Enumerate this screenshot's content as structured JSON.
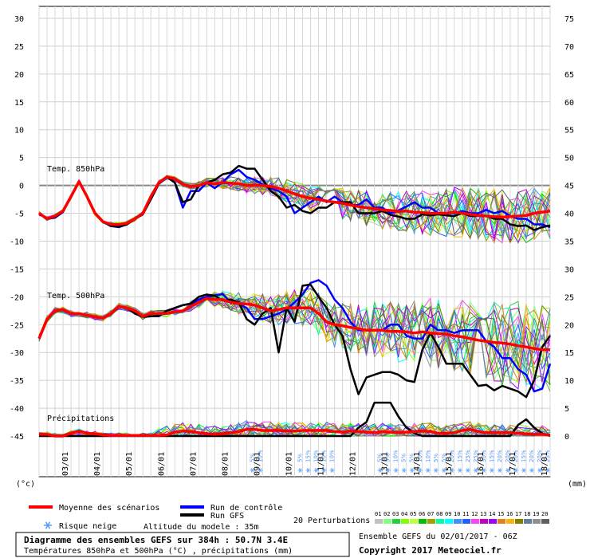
{
  "chart_data": {
    "type": "line",
    "title": "Diagramme des ensembles GEFS sur 384h : 50.7N 3.4E",
    "subtitle": "Températures 850hPa et 500hPa (°C) , précipitations (mm)",
    "left_axis": {
      "unit": "(°c)",
      "ticks": [
        30,
        25,
        20,
        15,
        10,
        5,
        0,
        -5,
        -10,
        -15,
        -20,
        -25,
        -30,
        -35,
        -40,
        -45
      ],
      "range": [
        -45,
        30
      ]
    },
    "right_axis": {
      "unit": "(mm)",
      "ticks": [
        75,
        70,
        65,
        60,
        55,
        50,
        45,
        40,
        35,
        30,
        25,
        20,
        15,
        10,
        5,
        0
      ],
      "range": [
        0,
        75
      ]
    },
    "x_dates": [
      "03/01",
      "04/01",
      "05/01",
      "06/01",
      "07/01",
      "08/01",
      "09/01",
      "10/01",
      "11/01",
      "12/01",
      "13/01",
      "14/01",
      "15/01",
      "16/01",
      "17/01",
      "18/01"
    ],
    "x_steps": 64,
    "section_labels": {
      "t850": "Temp. 850hPa",
      "t500": "Temp. 500hPa",
      "precip": "Précipitations"
    },
    "series": [
      {
        "name": "Moyenne des scénarios",
        "color": "#ff0000",
        "t850": [
          -5,
          -6,
          -5.5,
          -4.6,
          -2,
          0.7,
          -2,
          -5,
          -6.5,
          -7,
          -7,
          -6.8,
          -6,
          -5,
          -2,
          0.5,
          1.5,
          1.2,
          0.2,
          -0.2,
          0,
          0.5,
          0.3,
          0.5,
          0.4,
          0.3,
          0,
          0,
          0,
          -0.2,
          -0.5,
          -1,
          -1.5,
          -2,
          -2.3,
          -2.5,
          -2.8,
          -3,
          -3.2,
          -3.5,
          -3.8,
          -4,
          -4.2,
          -4.4,
          -4.5,
          -4.7,
          -4.6,
          -4.8,
          -4.9,
          -5,
          -5,
          -5,
          -4.8,
          -5,
          -5.2,
          -5.4,
          -5.5,
          -5.6,
          -5.7,
          -5.6,
          -5.5,
          -5.4,
          -5,
          -4.8,
          -4.6
        ],
        "t500": [
          -27.5,
          -24,
          -22.5,
          -22.3,
          -23,
          -23,
          -23.3,
          -23.6,
          -23.8,
          -23,
          -21.7,
          -22,
          -22.5,
          -23.5,
          -23,
          -23,
          -23,
          -22.7,
          -22.5,
          -21.7,
          -21,
          -20.3,
          -20.5,
          -20.5,
          -21,
          -21.2,
          -21.3,
          -21.5,
          -22,
          -22.5,
          -22.3,
          -22,
          -22,
          -22,
          -22,
          -23,
          -24.5,
          -25,
          -25.2,
          -25.5,
          -25.7,
          -26,
          -26,
          -26,
          -26.2,
          -26.2,
          -26.3,
          -26.5,
          -26.3,
          -26.5,
          -26.6,
          -26.7,
          -27,
          -27.2,
          -27.5,
          -27.8,
          -28,
          -28.2,
          -28.3,
          -28.5,
          -28.8,
          -29,
          -29.3,
          -29.5,
          -29.5
        ],
        "precip": [
          0.3,
          0.3,
          0,
          0,
          0.5,
          0.9,
          0.5,
          0.4,
          0.2,
          0.1,
          0.1,
          0.1,
          0.1,
          0.1,
          0.1,
          0.1,
          0.2,
          0.7,
          0.9,
          0.8,
          0.6,
          0.4,
          0.3,
          0.4,
          0.6,
          0.8,
          1.2,
          1.2,
          1.0,
          1.0,
          1.0,
          0.9,
          0.9,
          1.0,
          1.0,
          1.0,
          1.0,
          0.8,
          0.7,
          0.9,
          0.8,
          0.7,
          0.6,
          0.8,
          0.7,
          0.6,
          0.7,
          0.8,
          0.9,
          0.8,
          0.5,
          0.5,
          0.6,
          1.0,
          1.2,
          0.8,
          0.6,
          0.6,
          0.6,
          0.6,
          0.5,
          0.4,
          0.3,
          0.3,
          0.2
        ]
      },
      {
        "name": "Run de contrôle",
        "color": "#0000ff",
        "t850": [
          -5,
          -6,
          -5.8,
          -4.8,
          -2,
          0.6,
          -2,
          -5,
          -6.5,
          -7.3,
          -7.5,
          -7,
          -6,
          -5,
          -2.5,
          0.3,
          1.6,
          0.5,
          -4,
          -1,
          -1,
          0.5,
          -0.5,
          0.6,
          2,
          2.8,
          1.5,
          1,
          0.2,
          -0.5,
          -1,
          -2,
          -5,
          -4,
          -3,
          -2,
          -3,
          -2,
          -3,
          -3.5,
          -3.5,
          -2.5,
          -4,
          -4,
          -5,
          -4.5,
          -3.8,
          -3,
          -4,
          -4,
          -5,
          -5,
          -5,
          -4.6,
          -5,
          -5,
          -4.4,
          -5,
          -4.6,
          -5.5,
          -6,
          -6,
          -7,
          -7,
          -7.5
        ],
        "t500": [
          -27.5,
          -24,
          -22.5,
          -22.4,
          -23,
          -23,
          -23.3,
          -23.6,
          -23.8,
          -23,
          -21.7,
          -22,
          -23,
          -23.6,
          -23.5,
          -23.5,
          -22.5,
          -22,
          -21.5,
          -21.3,
          -20.5,
          -20,
          -19.8,
          -19.5,
          -21,
          -21.3,
          -22,
          -24,
          -24,
          -23.5,
          -23,
          -22.3,
          -21,
          -19.6,
          -17.5,
          -17,
          -18,
          -20.5,
          -22,
          -24.5,
          -26,
          -26,
          -26,
          -26,
          -25,
          -25,
          -27,
          -27.5,
          -27.5,
          -25,
          -26,
          -26,
          -26.5,
          -26,
          -26,
          -26,
          -28,
          -29,
          -31,
          -31,
          -33,
          -34,
          -37,
          -36.5,
          -32
        ]
      },
      {
        "name": "Run GFS",
        "color": "#000000",
        "t850": [
          -5,
          -6,
          -5.7,
          -4.7,
          -2,
          0.6,
          -2,
          -5,
          -6.5,
          -7.3,
          -7.4,
          -7,
          -6,
          -5.2,
          -2.5,
          0.3,
          1.5,
          0.5,
          -3,
          -2.5,
          0,
          0.5,
          1,
          2,
          2.3,
          3.5,
          3,
          3,
          1,
          -1,
          -2,
          -4,
          -3.5,
          -4.6,
          -5,
          -4,
          -4,
          -3,
          -3,
          -3,
          -5,
          -5,
          -5,
          -4.6,
          -5.3,
          -5.6,
          -6,
          -6,
          -5.2,
          -5.4,
          -5.2,
          -5.4,
          -5.5,
          -5,
          -5.5,
          -5.5,
          -5.5,
          -6,
          -6,
          -7,
          -7.3,
          -7.2,
          -8,
          -7.5,
          -7.2
        ],
        "t500": [
          -27.5,
          -24,
          -22.5,
          -22.4,
          -23,
          -23,
          -23.3,
          -23.6,
          -23.8,
          -23,
          -21.7,
          -22,
          -23,
          -23.6,
          -23.5,
          -23.4,
          -22.5,
          -22,
          -21.5,
          -21.2,
          -20,
          -19.6,
          -19.8,
          -20.7,
          -20.5,
          -21,
          -24,
          -25,
          -23,
          -22,
          -30,
          -22,
          -24.5,
          -18,
          -17.8,
          -20,
          -22,
          -25,
          -27,
          -33,
          -37.5,
          -34.5,
          -34,
          -33.5,
          -33.5,
          -34,
          -35,
          -35.3,
          -29.5,
          -26.5,
          -29,
          -32,
          -32,
          -32,
          -34,
          -36,
          -35.8,
          -36.8,
          -36,
          -36.5,
          -37,
          -38,
          -35,
          -29,
          -27
        ],
        "precip": [
          0,
          0,
          0,
          0,
          0,
          0,
          0,
          0,
          0,
          0,
          0,
          0,
          0,
          0,
          0,
          0,
          0,
          0,
          0,
          0,
          0,
          0,
          0,
          0,
          0,
          0,
          0,
          0,
          0,
          0,
          0,
          0,
          0,
          0,
          0,
          0,
          0,
          0,
          0,
          0,
          1.5,
          2.5,
          6,
          6,
          6,
          3.5,
          1.5,
          0.5,
          0,
          0,
          0,
          0,
          0,
          0,
          0,
          0,
          0,
          0,
          0,
          0,
          2,
          3,
          1.5,
          0.5,
          0
        ]
      }
    ],
    "perturbation_colors": [
      "#c0c0c0",
      "#80ff80",
      "#20d040",
      "#80ff00",
      "#c0ff40",
      "#00c000",
      "#a0a000",
      "#00ffa0",
      "#00ffff",
      "#4090ff",
      "#2060ff",
      "#ff40ff",
      "#c000c0",
      "#a000ff",
      "#e08020",
      "#ffb000",
      "#808000",
      "#6080a0",
      "#909090",
      "#606060"
    ],
    "snow_risk": [
      {
        "step": 27,
        "pct": "5%"
      },
      {
        "step": 28,
        "pct": "10%"
      },
      {
        "step": 33,
        "pct": "5%"
      },
      {
        "step": 34,
        "pct": "15%"
      },
      {
        "step": 35,
        "pct": "10%"
      },
      {
        "step": 36,
        "pct": "10%"
      },
      {
        "step": 37,
        "pct": "10%"
      },
      {
        "step": 43,
        "pct": "5%"
      },
      {
        "step": 44,
        "pct": "5%"
      },
      {
        "step": 45,
        "pct": "10%"
      },
      {
        "step": 46,
        "pct": "5%"
      },
      {
        "step": 47,
        "pct": "5%"
      },
      {
        "step": 48,
        "pct": "10%"
      },
      {
        "step": 49,
        "pct": "10%"
      },
      {
        "step": 50,
        "pct": "5%"
      },
      {
        "step": 51,
        "pct": "5%"
      },
      {
        "step": 52,
        "pct": "20%"
      },
      {
        "step": 53,
        "pct": "15%"
      },
      {
        "step": 54,
        "pct": "25%"
      },
      {
        "step": 55,
        "pct": "25%"
      },
      {
        "step": 56,
        "pct": "30%"
      },
      {
        "step": 57,
        "pct": "15%"
      },
      {
        "step": 58,
        "pct": "20%"
      },
      {
        "step": 59,
        "pct": "20%"
      },
      {
        "step": 60,
        "pct": "20%"
      },
      {
        "step": 61,
        "pct": "15%"
      },
      {
        "step": 62,
        "pct": "20%"
      },
      {
        "step": 63,
        "pct": "20%"
      },
      {
        "step": 64,
        "pct": "25%"
      }
    ]
  },
  "legend": {
    "mean": "Moyenne des scénarios",
    "control": "Run de contrôle",
    "gfs": "Run GFS",
    "perturbations": "20 Perturbations",
    "snow": "Risque neige",
    "altitude": "Altitude du modele : 35m",
    "perturbation_numbers": [
      "01",
      "02",
      "03",
      "04",
      "05",
      "06",
      "07",
      "08",
      "09",
      "10",
      "11",
      "12",
      "13",
      "14",
      "15",
      "16",
      "17",
      "18",
      "19",
      "20"
    ]
  },
  "footer": {
    "title": "Diagramme des ensembles GEFS sur 384h : 50.7N 3.4E",
    "subtitle": "Températures 850hPa et 500hPa (°C) , précipitations (mm)",
    "run": "Ensemble GEFS du 02/01/2017 - 06Z",
    "copyright": "Copyright 2017 Meteociel.fr"
  }
}
